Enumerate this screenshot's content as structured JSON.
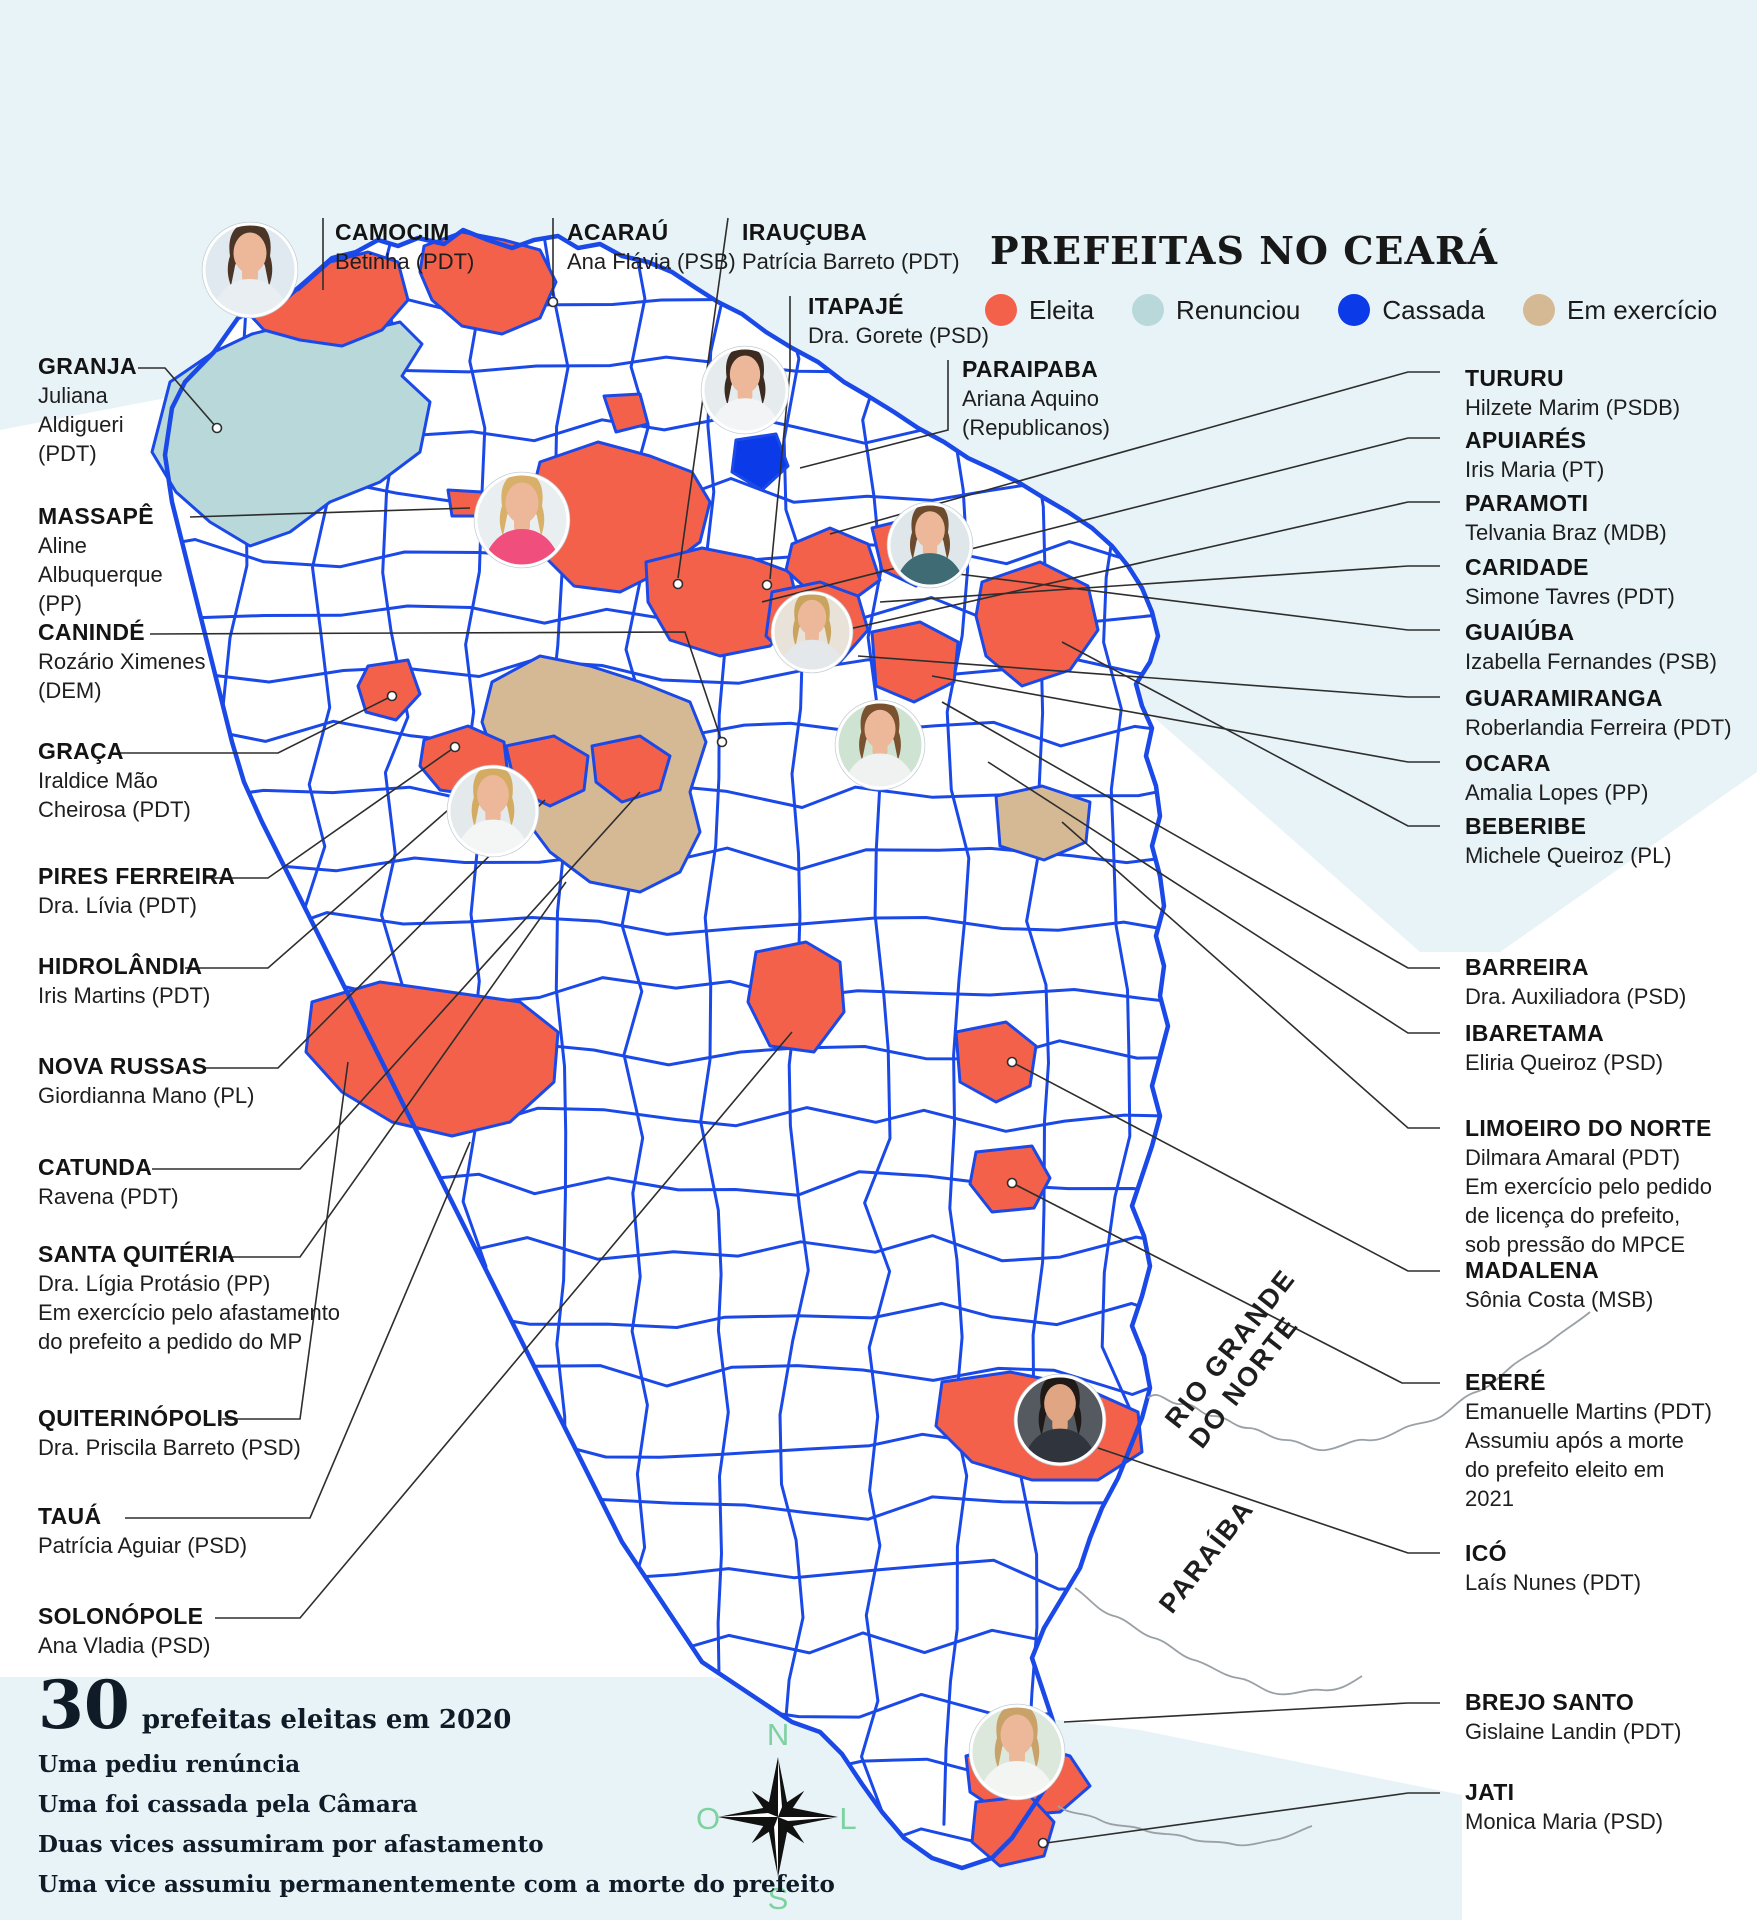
{
  "title": "PREFEITAS NO CEARÁ",
  "legend": {
    "items": [
      {
        "label": "Eleita",
        "color": "#f4614b"
      },
      {
        "label": "Renunciou",
        "color": "#b9d8da"
      },
      {
        "label": "Cassada",
        "color": "#0b3ae8"
      },
      {
        "label": "Em exercício",
        "color": "#d5b894"
      }
    ]
  },
  "callouts": {
    "top": [
      {
        "city": "CAMOCIM",
        "lines": [
          "Betinha (PDT)"
        ]
      },
      {
        "city": "ACARAÚ",
        "lines": [
          "Ana Flávia (PSB)"
        ]
      },
      {
        "city": "IRAUÇUBA",
        "lines": [
          "Patrícia Barreto (PDT)"
        ]
      },
      {
        "city": "ITAPAJÉ",
        "lines": [
          "Dra. Gorete (PSD)"
        ]
      },
      {
        "city": "PARAIPABA",
        "lines": [
          "Ariana Aquino",
          "(Republicanos)"
        ]
      }
    ],
    "left": [
      {
        "city": "GRANJA",
        "lines": [
          "Juliana",
          "Aldigueri",
          "(PDT)"
        ]
      },
      {
        "city": "MASSAPÊ",
        "lines": [
          "Aline",
          "Albuquerque",
          "(PP)"
        ]
      },
      {
        "city": "CANINDÉ",
        "lines": [
          "Rozário Ximenes",
          "(DEM)"
        ]
      },
      {
        "city": "GRAÇA",
        "lines": [
          "Iraldice Mão",
          "Cheirosa (PDT)"
        ]
      },
      {
        "city": "PIRES FERREIRA",
        "lines": [
          "Dra. Lívia (PDT)"
        ]
      },
      {
        "city": "HIDROLÂNDIA",
        "lines": [
          "Iris Martins (PDT)"
        ]
      },
      {
        "city": "NOVA RUSSAS",
        "lines": [
          "Giordianna Mano (PL)"
        ]
      },
      {
        "city": "CATUNDA",
        "lines": [
          "Ravena (PDT)"
        ]
      },
      {
        "city": "SANTA QUITÉRIA",
        "lines": [
          "Dra. Lígia Protásio (PP)",
          "Em exercício pelo afastamento",
          "do prefeito a pedido do MP"
        ]
      },
      {
        "city": "QUITERINÓPOLIS",
        "lines": [
          "Dra. Priscila Barreto (PSD)"
        ]
      },
      {
        "city": "TAUÁ",
        "lines": [
          "Patrícia Aguiar (PSD)"
        ]
      },
      {
        "city": "SOLONÓPOLE",
        "lines": [
          "Ana Vladia (PSD)"
        ]
      }
    ],
    "right": [
      {
        "city": "TURURU",
        "lines": [
          "Hilzete Marim (PSDB)"
        ]
      },
      {
        "city": "APUIARÉS",
        "lines": [
          "Iris Maria (PT)"
        ]
      },
      {
        "city": "PARAMOTI",
        "lines": [
          "Telvania Braz (MDB)"
        ]
      },
      {
        "city": "CARIDADE",
        "lines": [
          "Simone Tavres (PDT)"
        ]
      },
      {
        "city": "GUAIÚBA",
        "lines": [
          "Izabella Fernandes (PSB)"
        ]
      },
      {
        "city": "GUARAMIRANGA",
        "lines": [
          "Roberlandia Ferreira (PDT)"
        ]
      },
      {
        "city": "OCARA",
        "lines": [
          "Amalia Lopes (PP)"
        ]
      },
      {
        "city": "BEBERIBE",
        "lines": [
          "Michele Queiroz (PL)"
        ]
      },
      {
        "city": "BARREIRA",
        "lines": [
          "Dra. Auxiliadora (PSD)"
        ]
      },
      {
        "city": "IBARETAMA",
        "lines": [
          "Eliria Queiroz (PSD)"
        ]
      },
      {
        "city": "LIMOEIRO DO NORTE",
        "lines": [
          "Dilmara Amaral (PDT)",
          "Em exercício pelo pedido",
          "de licença do prefeito,",
          "sob pressão do MPCE"
        ]
      },
      {
        "city": "MADALENA",
        "lines": [
          "Sônia Costa (MSB)"
        ]
      },
      {
        "city": "ERERÉ",
        "lines": [
          "Emanuelle Martins (PDT)",
          "Assumiu após a morte",
          "do prefeito eleito em",
          "2021"
        ]
      },
      {
        "city": "ICÓ",
        "lines": [
          "Laís Nunes (PDT)"
        ]
      },
      {
        "city": "BREJO SANTO",
        "lines": [
          "Gislaine Landin (PDT)"
        ]
      },
      {
        "city": "JATI",
        "lines": [
          "Monica Maria (PSD)"
        ]
      }
    ]
  },
  "neighbors": {
    "rn_line1": "RIO GRANDE",
    "rn_line2": "DO NORTE",
    "pb": "PARAÍBA"
  },
  "compass": {
    "n": "N",
    "o": "O",
    "l": "L",
    "s": "S"
  },
  "stats": {
    "big": "30",
    "headline": "prefeitas eleitas em 2020",
    "lines": [
      "Uma pediu renúncia",
      "Uma foi cassada pela Câmara",
      "Duas vices assumiram por afastamento",
      "Uma vice assumiu permanentemente com a morte do prefeito"
    ]
  },
  "photos": [
    {
      "city": "Camocim",
      "bg": "#dfe9ef",
      "hair": "#4a3526",
      "shirt": "#e8eef2"
    },
    {
      "city": "Massapê",
      "bg": "#e9eef1",
      "hair": "#d8b06a",
      "shirt": "#f04f7e"
    },
    {
      "city": "Paraipaba",
      "bg": "#e6ebee",
      "hair": "#3c2b20",
      "shirt": "#f2f4f6"
    },
    {
      "city": "Caridade",
      "bg": "#dfe7ea",
      "hair": "#6b4a2e",
      "shirt": "#3e6b74"
    },
    {
      "city": "Guaramiranga",
      "bg": "#e8e2d8",
      "hair": "#c9a45e",
      "shirt": "#e4e8ea"
    },
    {
      "city": "Barreira",
      "bg": "#cfe3d2",
      "hair": "#7a5230",
      "shirt": "#f0f2f2"
    },
    {
      "city": "Hidrolândia",
      "bg": "#e4e9ec",
      "hair": "#d3ab62",
      "shirt": "#f4f6f6"
    },
    {
      "city": "Icó",
      "bg": "#555a60",
      "hair": "#1f1a18",
      "shirt": "#30343c"
    },
    {
      "city": "Brejo Santo",
      "bg": "#dce8dc",
      "hair": "#c8a268",
      "shirt": "#f3f5f3"
    }
  ]
}
